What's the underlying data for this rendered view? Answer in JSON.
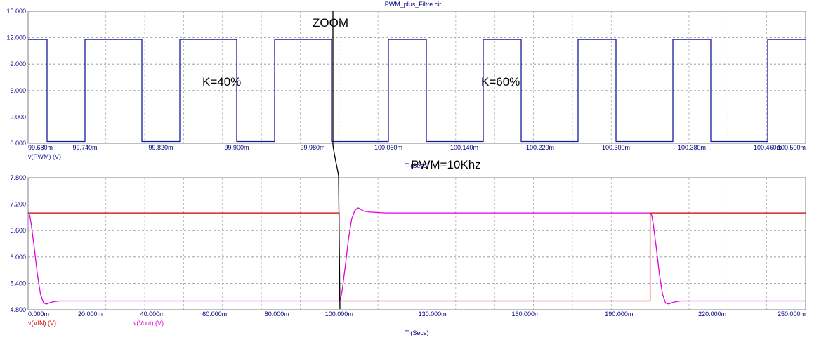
{
  "window": {
    "title": "PWM_plus_Filtre.cir"
  },
  "annotations": {
    "zoom": "ZOOM",
    "duty_low": "K=40%",
    "duty_high": "K=60%",
    "pwm_freq": "PWM=10Khz"
  },
  "colors": {
    "axis_text": "#000080",
    "vpwm": "#1a1aa0",
    "vin": "#cc0000",
    "vout": "#e000e0",
    "grid": "#808080"
  },
  "chart_data": [
    {
      "type": "line",
      "title": "PWM_plus_Filtre.cir",
      "xlabel": "T (Secs)",
      "xlim": [
        99.68,
        100.5
      ],
      "ylim": [
        0,
        15
      ],
      "x_unit": "ms",
      "grid": true,
      "xticks": [
        "99.680m",
        "99.740m",
        "99.820m",
        "99.900m",
        "99.980m",
        "100.060m",
        "100.140m",
        "100.220m",
        "100.300m",
        "100.380m",
        "100.460m",
        "100.500m"
      ],
      "yticks": [
        "15.000",
        "12.000",
        "9.000",
        "6.000",
        "3.000",
        "0.000"
      ],
      "series": [
        {
          "name": "v(PWM) (V)",
          "color": "#1a1aa0",
          "x": [
            99.68,
            99.7,
            99.7,
            99.74,
            99.74,
            99.8,
            99.8,
            99.84,
            99.84,
            99.9,
            99.9,
            99.94,
            99.94,
            100.0,
            100.0,
            100.06,
            100.06,
            100.1,
            100.1,
            100.16,
            100.16,
            100.2,
            100.2,
            100.26,
            100.26,
            100.3,
            100.3,
            100.36,
            100.36,
            100.4,
            100.4,
            100.46,
            100.46,
            100.5
          ],
          "y": [
            11.8,
            11.8,
            0.2,
            0.2,
            11.8,
            11.8,
            0.2,
            0.2,
            11.8,
            11.8,
            0.2,
            0.2,
            11.8,
            11.8,
            0.2,
            0.2,
            11.8,
            11.8,
            0.2,
            0.2,
            11.8,
            11.8,
            0.2,
            0.2,
            11.8,
            11.8,
            0.2,
            0.2,
            11.8,
            11.8,
            0.2,
            0.2,
            11.8,
            11.8
          ]
        }
      ]
    },
    {
      "type": "line",
      "xlabel": "T (Secs)",
      "xlim": [
        0,
        250
      ],
      "ylim": [
        4.8,
        7.8
      ],
      "x_unit": "ms",
      "grid": true,
      "xticks": [
        "0.000m",
        "20.000m",
        "40.000m",
        "60.000m",
        "80.000m",
        "100.000m",
        "130.000m",
        "160.000m",
        "190.000m",
        "220.000m",
        "250.000m"
      ],
      "yticks": [
        "7.800",
        "7.200",
        "6.600",
        "6.000",
        "5.400",
        "4.800"
      ],
      "series": [
        {
          "name": "v(VIN) (V)",
          "color": "#cc0000",
          "x": [
            0,
            100,
            100,
            200,
            200,
            250
          ],
          "y": [
            7.0,
            7.0,
            5.0,
            5.0,
            7.0,
            7.0
          ]
        },
        {
          "name": "v(Vout) (V)",
          "color": "#e000e0",
          "x": [
            0,
            0.5,
            1,
            2,
            3,
            4,
            5,
            6,
            7,
            8,
            10,
            15,
            100,
            100.5,
            101,
            102,
            103,
            104,
            105,
            106,
            107,
            108,
            110,
            115,
            200,
            200.5,
            201,
            202,
            203,
            204,
            205,
            206,
            207,
            208,
            210,
            215,
            250
          ],
          "y": [
            7.0,
            6.95,
            6.75,
            6.2,
            5.6,
            5.15,
            4.95,
            4.93,
            4.96,
            4.98,
            5.0,
            5.0,
            5.0,
            5.05,
            5.25,
            5.8,
            6.4,
            6.85,
            7.05,
            7.12,
            7.08,
            7.04,
            7.02,
            7.0,
            7.0,
            6.95,
            6.75,
            6.2,
            5.6,
            5.15,
            4.95,
            4.93,
            4.96,
            4.98,
            5.0,
            5.0,
            5.0
          ]
        }
      ]
    }
  ]
}
